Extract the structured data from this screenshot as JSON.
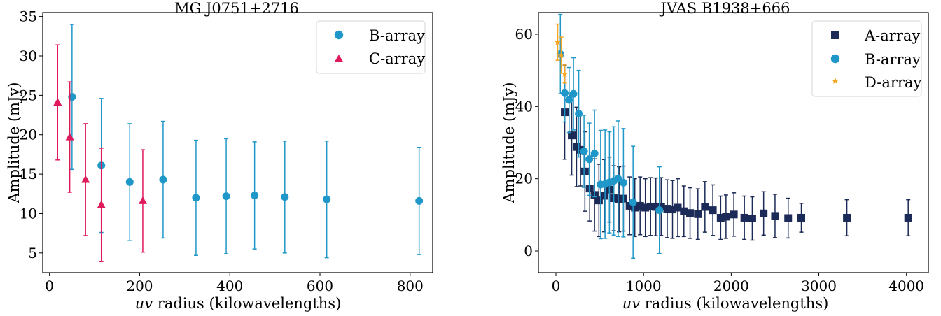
{
  "chart_data": [
    {
      "type": "scatter",
      "title": "MG J0751+2716",
      "xlabel_italic": "uv",
      "xlabel_rest": " radius (kilowavelengths)",
      "ylabel": "Amplitude (mJy)",
      "xlim": [
        -15,
        850
      ],
      "ylim": [
        2.5,
        35.5
      ],
      "xticks": [
        0,
        200,
        400,
        600,
        800
      ],
      "yticks": [
        5,
        10,
        15,
        20,
        25,
        30,
        35
      ],
      "legend_position": "upper right",
      "series": [
        {
          "name": "B-array",
          "marker": "circle",
          "color": "#1f97c8",
          "points": [
            {
              "x": 50,
              "y": 24.8,
              "err": 9.2
            },
            {
              "x": 115,
              "y": 16.1,
              "err": 8.5
            },
            {
              "x": 178,
              "y": 14.0,
              "err": 7.4
            },
            {
              "x": 252,
              "y": 14.3,
              "err": 7.4
            },
            {
              "x": 325,
              "y": 12.0,
              "err": 7.3
            },
            {
              "x": 392,
              "y": 12.2,
              "err": 7.3
            },
            {
              "x": 455,
              "y": 12.3,
              "err": 6.8
            },
            {
              "x": 522,
              "y": 12.1,
              "err": 7.1
            },
            {
              "x": 615,
              "y": 11.8,
              "err": 7.4
            },
            {
              "x": 820,
              "y": 11.6,
              "err": 6.8
            }
          ]
        },
        {
          "name": "C-array",
          "marker": "triangle",
          "color": "#e0195a",
          "points": [
            {
              "x": 18,
              "y": 24.1,
              "err": 7.3
            },
            {
              "x": 45,
              "y": 19.7,
              "err": 7.0
            },
            {
              "x": 80,
              "y": 14.3,
              "err": 7.1
            },
            {
              "x": 115,
              "y": 11.1,
              "err": 7.2
            },
            {
              "x": 207,
              "y": 11.6,
              "err": 6.5
            }
          ]
        }
      ]
    },
    {
      "type": "scatter",
      "title": "JVAS B1938+666",
      "xlabel_italic": "uv",
      "xlabel_rest": " radius (kilowavelengths)",
      "ylabel": "Amplitude (mJy)",
      "xlim": [
        -200,
        4250
      ],
      "ylim": [
        -6,
        66
      ],
      "xticks": [
        0,
        1000,
        2000,
        3000,
        4000
      ],
      "yticks": [
        0,
        20,
        40,
        60
      ],
      "legend_position": "upper right",
      "series": [
        {
          "name": "A-array",
          "marker": "square",
          "color": "#1b2a56",
          "points": [
            {
              "x": 100,
              "y": 38.4,
              "err": 13
            },
            {
              "x": 180,
              "y": 32.0,
              "err": 11
            },
            {
              "x": 235,
              "y": 28.8,
              "err": 11
            },
            {
              "x": 280,
              "y": 28.0,
              "err": 10
            },
            {
              "x": 330,
              "y": 22.0,
              "err": 11
            },
            {
              "x": 385,
              "y": 17.3,
              "err": 9
            },
            {
              "x": 440,
              "y": 15.5,
              "err": 10
            },
            {
              "x": 490,
              "y": 14.0,
              "err": 10
            },
            {
              "x": 550,
              "y": 15.3,
              "err": 10
            },
            {
              "x": 610,
              "y": 17.0,
              "err": 9
            },
            {
              "x": 660,
              "y": 14.6,
              "err": 9
            },
            {
              "x": 720,
              "y": 14.3,
              "err": 9
            },
            {
              "x": 770,
              "y": 14.5,
              "err": 9
            },
            {
              "x": 840,
              "y": 12.5,
              "err": 8
            },
            {
              "x": 900,
              "y": 12.0,
              "err": 8
            },
            {
              "x": 960,
              "y": 12.5,
              "err": 8
            },
            {
              "x": 1020,
              "y": 12.0,
              "err": 8
            },
            {
              "x": 1080,
              "y": 12.3,
              "err": 8
            },
            {
              "x": 1140,
              "y": 12.2,
              "err": 8
            },
            {
              "x": 1200,
              "y": 12.3,
              "err": 8
            },
            {
              "x": 1270,
              "y": 11.7,
              "err": 8
            },
            {
              "x": 1330,
              "y": 11.5,
              "err": 8
            },
            {
              "x": 1390,
              "y": 12.0,
              "err": 8
            },
            {
              "x": 1460,
              "y": 11.0,
              "err": 7
            },
            {
              "x": 1530,
              "y": 10.5,
              "err": 7
            },
            {
              "x": 1620,
              "y": 10.2,
              "err": 7
            },
            {
              "x": 1700,
              "y": 12.2,
              "err": 7
            },
            {
              "x": 1790,
              "y": 11.3,
              "err": 7
            },
            {
              "x": 1880,
              "y": 9.2,
              "err": 6
            },
            {
              "x": 1940,
              "y": 9.5,
              "err": 6
            },
            {
              "x": 2030,
              "y": 10.1,
              "err": 6
            },
            {
              "x": 2150,
              "y": 9.2,
              "err": 6
            },
            {
              "x": 2240,
              "y": 9.0,
              "err": 6
            },
            {
              "x": 2370,
              "y": 10.4,
              "err": 6
            },
            {
              "x": 2500,
              "y": 9.7,
              "err": 6
            },
            {
              "x": 2650,
              "y": 9.1,
              "err": 5.5
            },
            {
              "x": 2800,
              "y": 9.2,
              "err": 4
            },
            {
              "x": 3320,
              "y": 9.2,
              "err": 5
            },
            {
              "x": 4020,
              "y": 9.2,
              "err": 5
            }
          ]
        },
        {
          "name": "B-array",
          "marker": "circle",
          "color": "#1f97c8",
          "points": [
            {
              "x": 50,
              "y": 54.5,
              "err": 11
            },
            {
              "x": 100,
              "y": 43.7,
              "err": 8
            },
            {
              "x": 150,
              "y": 41.8,
              "err": 9
            },
            {
              "x": 200,
              "y": 43.5,
              "err": 10
            },
            {
              "x": 260,
              "y": 38.0,
              "err": 12
            },
            {
              "x": 320,
              "y": 27.6,
              "err": 10
            },
            {
              "x": 380,
              "y": 25.4,
              "err": 10
            },
            {
              "x": 440,
              "y": 27.0,
              "err": 12
            },
            {
              "x": 510,
              "y": 18.4,
              "err": 15
            },
            {
              "x": 560,
              "y": 18.5,
              "err": 15
            },
            {
              "x": 610,
              "y": 19.0,
              "err": 14
            },
            {
              "x": 660,
              "y": 19.4,
              "err": 15
            },
            {
              "x": 710,
              "y": 20.0,
              "err": 16
            },
            {
              "x": 770,
              "y": 18.9,
              "err": 15
            },
            {
              "x": 880,
              "y": 13.5,
              "err": 15.5
            },
            {
              "x": 1180,
              "y": 11.3,
              "err": 12
            }
          ]
        },
        {
          "name": "D-array",
          "marker": "star",
          "color": "#f5a623",
          "points": [
            {
              "x": 20,
              "y": 57.8,
              "err": 5
            },
            {
              "x": 60,
              "y": 54.2,
              "err": 5
            },
            {
              "x": 100,
              "y": 49.0,
              "err": 2.5
            }
          ]
        }
      ]
    }
  ]
}
